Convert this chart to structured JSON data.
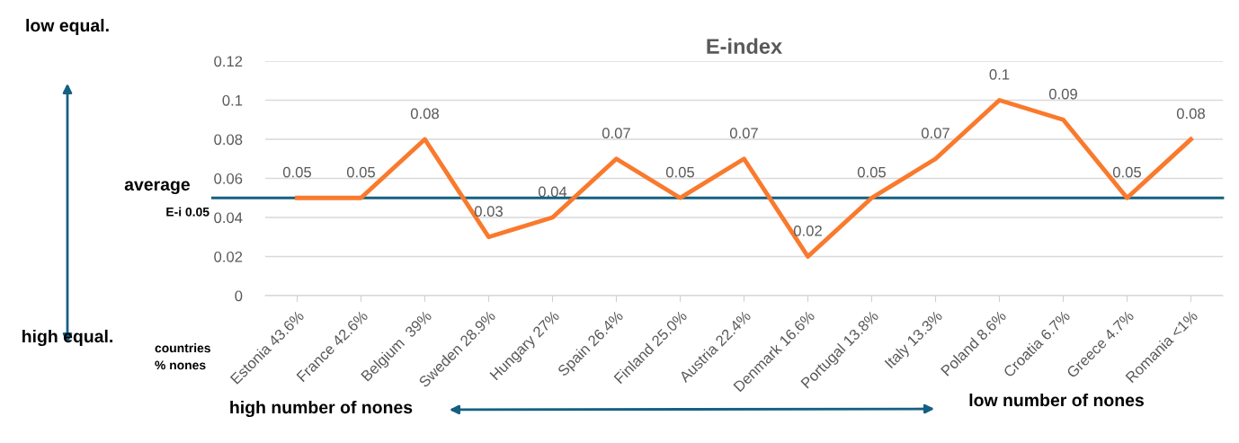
{
  "chart_data": {
    "type": "line",
    "title": "E-index",
    "categories": [
      "Estonia 43.6%",
      "France 42.6%",
      "Belgium  39%",
      "Sweden 28.9%",
      "Hungary 27%",
      "Spain 26.4%",
      "Finland 25.0%",
      "Austria 22.4%",
      "Denmark 16.6%",
      "Portugal 13.8%",
      "Italy 13.3%",
      "Poland 8.6%",
      "Croatia 6.7%",
      "Greece 4.7%",
      "Romania <1%"
    ],
    "series": [
      {
        "color": "#f97a2d",
        "values": [
          0.05,
          0.05,
          0.08,
          0.03,
          0.04,
          0.07,
          0.05,
          0.07,
          0.02,
          0.05,
          0.07,
          0.1,
          0.09,
          0.05,
          0.08
        ]
      }
    ],
    "ylim": [
      0,
      0.12
    ],
    "yticks": [
      0,
      0.02,
      0.04,
      0.06,
      0.08,
      0.1,
      0.12
    ],
    "grid": "y",
    "legend": false,
    "marker": "none",
    "line_style": "solid",
    "data_labels": true,
    "ref_lines": [
      {
        "axis": "y",
        "value": 0.05,
        "label": "average",
        "color": "#156082",
        "line_style": "solid"
      }
    ],
    "annotations": [
      "low equal.",
      "high equal.",
      "E-i 0.05",
      "countries\n% nones",
      "high number of nones",
      "low number of nones"
    ]
  }
}
